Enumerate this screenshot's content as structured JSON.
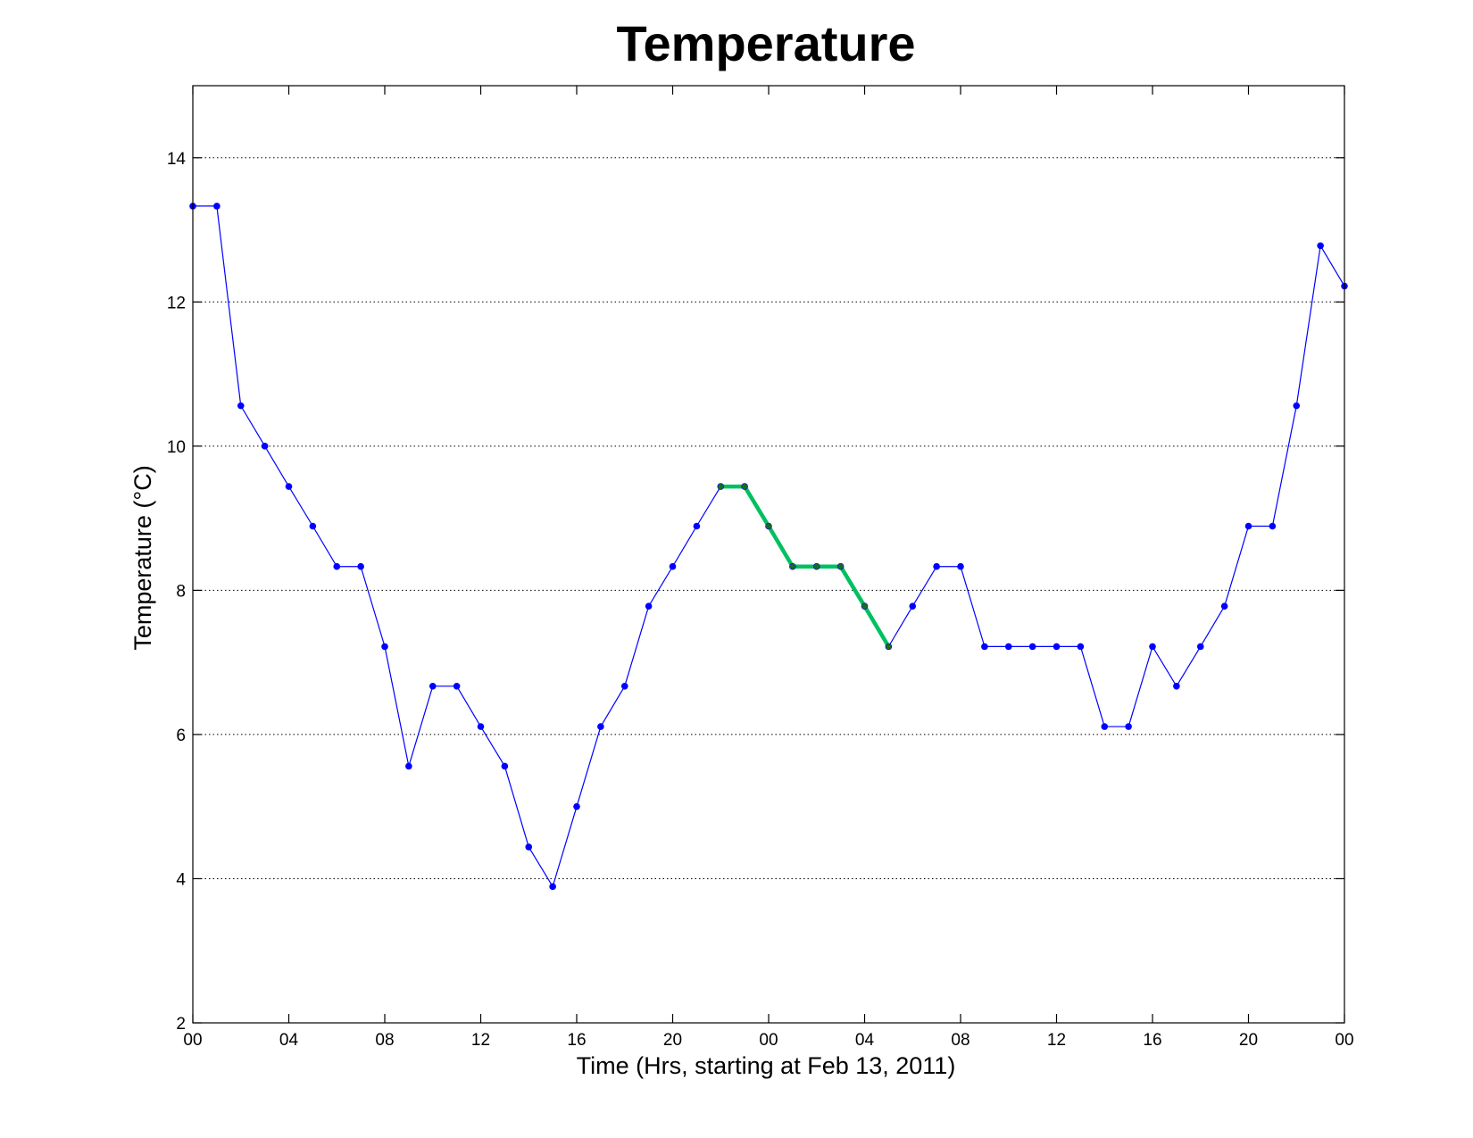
{
  "chart_data": {
    "type": "line",
    "title": "Temperature",
    "xlabel": "Time (Hrs, starting at Feb 13, 2011)",
    "ylabel": "Temperature (°C)",
    "xlim": [
      0,
      48
    ],
    "ylim": [
      2,
      15
    ],
    "grid": "y-dotted",
    "x_ticks": [
      0,
      4,
      8,
      12,
      16,
      20,
      24,
      28,
      32,
      36,
      40,
      44,
      48
    ],
    "x_tick_labels": [
      "00",
      "04",
      "08",
      "12",
      "16",
      "20",
      "00",
      "04",
      "08",
      "12",
      "16",
      "20",
      "00"
    ],
    "y_ticks": [
      2,
      4,
      6,
      8,
      10,
      12,
      14
    ],
    "y_tick_labels": [
      "2",
      "4",
      "6",
      "8",
      "10",
      "12",
      "14"
    ],
    "series": [
      {
        "color": "#0000ff",
        "marker_color": "#0000ff",
        "x": [
          0,
          1,
          2,
          3,
          4,
          5,
          6,
          7,
          8,
          9,
          10,
          11,
          12,
          13,
          14,
          15,
          16,
          17,
          18,
          19,
          20,
          21,
          22,
          23,
          24,
          25,
          26,
          27,
          28,
          29,
          30,
          31,
          32,
          33,
          34,
          35,
          36,
          37,
          38,
          39,
          40,
          41,
          42,
          43,
          44,
          45,
          46,
          47,
          48
        ],
        "y": [
          13.33,
          13.33,
          10.56,
          10.0,
          9.44,
          8.89,
          8.33,
          8.33,
          7.22,
          5.56,
          6.67,
          6.67,
          6.11,
          5.56,
          4.44,
          3.89,
          5.0,
          6.11,
          6.67,
          7.78,
          8.33,
          8.89,
          9.44,
          9.44,
          8.89,
          8.33,
          8.33,
          8.33,
          7.78,
          7.22,
          7.78,
          8.33,
          8.33,
          7.22,
          7.22,
          7.22,
          7.22,
          7.22,
          6.11,
          6.11,
          7.22,
          6.67,
          7.22,
          7.78,
          8.89,
          8.89,
          10.56,
          12.78,
          12.22
        ]
      },
      {
        "color": "#00c060",
        "marker_color": "#1a6b1a",
        "x": [
          22,
          23,
          24,
          25,
          26,
          27,
          28,
          29
        ],
        "y": [
          9.44,
          9.44,
          8.89,
          8.33,
          8.33,
          8.33,
          7.78,
          7.22
        ]
      }
    ]
  }
}
